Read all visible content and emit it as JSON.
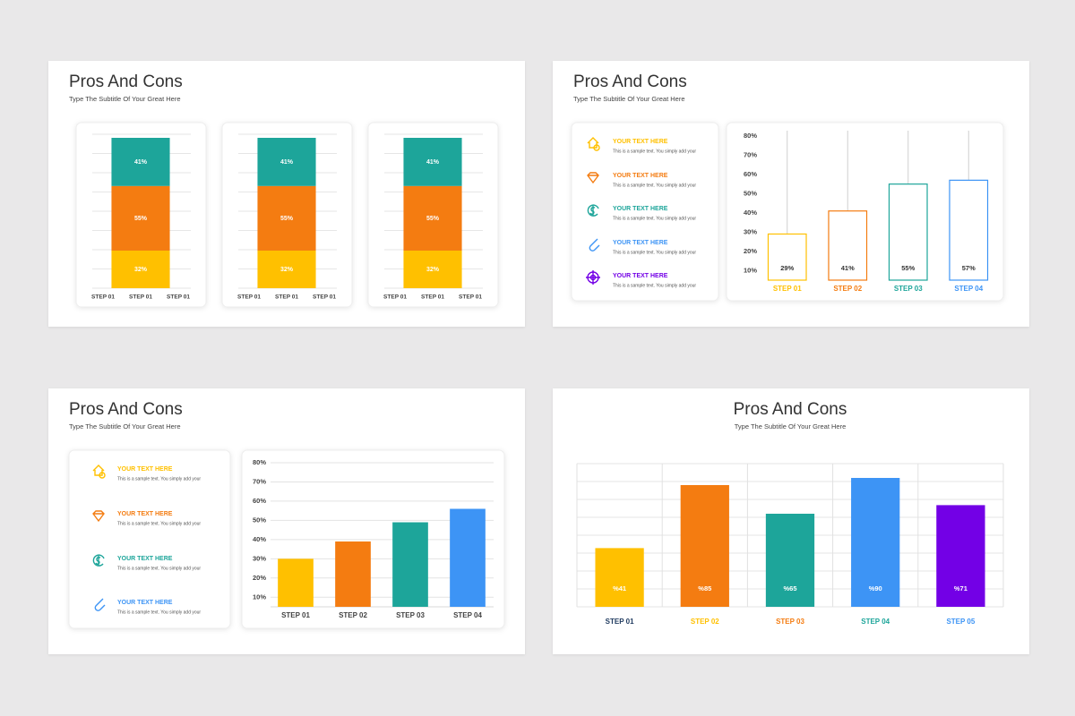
{
  "slides": [
    {
      "title": "Pros And Cons",
      "subtitle": "Type The Subtitle Of Your Great Here",
      "chart_data": [
        {
          "type": "stacked_bar",
          "categories": [
            "STEP 01",
            "STEP 01",
            "STEP 01"
          ],
          "grid": true,
          "series": [
            {
              "color": "#FFC000",
              "values": [
                null,
                32,
                null
              ],
              "value_labels": [
                null,
                "32%",
                null
              ]
            },
            {
              "color": "#F47C11",
              "values": [
                null,
                55,
                null
              ],
              "value_labels": [
                null,
                "55%",
                null
              ]
            },
            {
              "color": "#1DA59A",
              "values": [
                null,
                41,
                null
              ],
              "value_labels": [
                null,
                "41%",
                null
              ]
            }
          ]
        },
        {
          "type": "stacked_bar",
          "categories": [
            "STEP 01",
            "STEP 01",
            "STEP 01"
          ],
          "grid": true,
          "series": [
            {
              "color": "#FFC000",
              "values": [
                null,
                32,
                null
              ],
              "value_labels": [
                null,
                "32%",
                null
              ]
            },
            {
              "color": "#F47C11",
              "values": [
                null,
                55,
                null
              ],
              "value_labels": [
                null,
                "55%",
                null
              ]
            },
            {
              "color": "#1DA59A",
              "values": [
                null,
                41,
                null
              ],
              "value_labels": [
                null,
                "41%",
                null
              ]
            }
          ]
        },
        {
          "type": "stacked_bar",
          "categories": [
            "STEP 01",
            "STEP 01",
            "STEP 01"
          ],
          "grid": true,
          "series": [
            {
              "color": "#FFC000",
              "values": [
                null,
                32,
                null
              ],
              "value_labels": [
                null,
                "32%",
                null
              ]
            },
            {
              "color": "#F47C11",
              "values": [
                null,
                55,
                null
              ],
              "value_labels": [
                null,
                "55%",
                null
              ]
            },
            {
              "color": "#1DA59A",
              "values": [
                null,
                41,
                null
              ],
              "value_labels": [
                null,
                "41%",
                null
              ]
            }
          ]
        }
      ]
    },
    {
      "title": "Pros And Cons",
      "subtitle": "Type The Subtitle Of Your Great Here",
      "items": [
        {
          "title": "YOUR TEXT HERE",
          "text": "This is a sample text. You simply add your",
          "color": "#FFC000"
        },
        {
          "title": "YOUR TEXT HERE",
          "text": "This is a sample text. You simply add your",
          "color": "#F47C11"
        },
        {
          "title": "YOUR TEXT HERE",
          "text": "This is a sample text. You simply add your",
          "color": "#1DA59A"
        },
        {
          "title": "YOUR TEXT HERE",
          "text": "This is a sample text. You simply add your",
          "color": "#3D94F5"
        },
        {
          "title": "YOUR TEXT HERE",
          "text": "This is a sample text. You simply add your",
          "color": "#7300E6"
        }
      ],
      "chart_data": {
        "type": "bar",
        "style": "outline",
        "grid": false,
        "categories": [
          "STEP 01",
          "STEP 02",
          "STEP 03",
          "STEP 04"
        ],
        "values": [
          29,
          41,
          55,
          57
        ],
        "value_labels": [
          "29%",
          "41%",
          "55%",
          "57%"
        ],
        "colors": [
          "#FFC000",
          "#F47C11",
          "#1DA59A",
          "#3D94F5"
        ],
        "label_colors": [
          "#FFC000",
          "#F47C11",
          "#1DA59A",
          "#3D94F5"
        ],
        "ylim": [
          5,
          80
        ],
        "yticks": [
          {
            "value": 10,
            "label": "10%"
          },
          {
            "value": 20,
            "label": "20%"
          },
          {
            "value": 30,
            "label": "30%"
          },
          {
            "value": 40,
            "label": "40%"
          },
          {
            "value": 50,
            "label": "50%"
          },
          {
            "value": 60,
            "label": "60%"
          },
          {
            "value": 70,
            "label": "70%"
          },
          {
            "value": 80,
            "label": "80%"
          }
        ]
      }
    },
    {
      "title": "Pros And Cons",
      "subtitle": "Type The Subtitle Of Your Great Here",
      "items": [
        {
          "title": "YOUR TEXT HERE",
          "text": "This is a sample text. You simply add your",
          "color": "#FFC000"
        },
        {
          "title": "YOUR TEXT HERE",
          "text": "This is a sample text. You simply add your",
          "color": "#F47C11"
        },
        {
          "title": "YOUR TEXT HERE",
          "text": "This is a sample text. You simply add your",
          "color": "#1DA59A"
        },
        {
          "title": "YOUR TEXT HERE",
          "text": "This is a sample text. You simply add your",
          "color": "#3D94F5"
        }
      ],
      "chart_data": {
        "type": "bar",
        "grid": true,
        "categories": [
          "STEP 01",
          "STEP 02",
          "STEP 03",
          "STEP 04"
        ],
        "values": [
          30,
          39,
          49,
          56
        ],
        "colors": [
          "#FFC000",
          "#F47C11",
          "#1DA59A",
          "#3D94F5"
        ],
        "ylim": [
          5,
          80
        ],
        "yticks": [
          {
            "value": 10,
            "label": "10%"
          },
          {
            "value": 20,
            "label": "20%"
          },
          {
            "value": 30,
            "label": "30%"
          },
          {
            "value": 40,
            "label": "40%"
          },
          {
            "value": 50,
            "label": "50%"
          },
          {
            "value": 60,
            "label": "60%"
          },
          {
            "value": 70,
            "label": "70%"
          },
          {
            "value": 80,
            "label": "80%"
          }
        ]
      }
    },
    {
      "title": "Pros And Cons",
      "subtitle": "Type The Subtitle Of Your Great Here",
      "chart_data": {
        "type": "bar",
        "grid": true,
        "categories": [
          "STEP 01",
          "STEP 02",
          "STEP 03",
          "STEP 04",
          "STEP 05"
        ],
        "values": [
          41,
          85,
          65,
          90,
          71
        ],
        "value_labels": [
          "%41",
          "%85",
          "%65",
          "%90",
          "%71"
        ],
        "colors": [
          "#FFC000",
          "#F47C11",
          "#1DA59A",
          "#3D94F5",
          "#7300E6"
        ],
        "label_colors": [
          "#1F3A5F",
          "#FFC000",
          "#F47C11",
          "#1DA59A",
          "#3D94F5"
        ],
        "ylim": [
          0,
          100
        ]
      }
    }
  ]
}
